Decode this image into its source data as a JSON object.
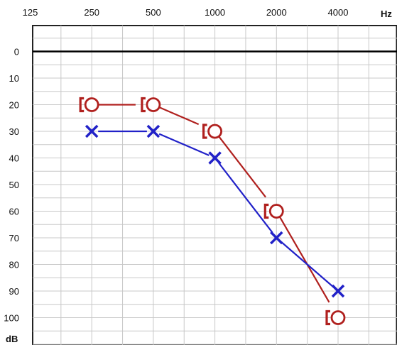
{
  "chart_data": {
    "type": "line",
    "title": "",
    "xlabel": "Hz",
    "ylabel": "dB",
    "x_ticks": [
      "125",
      "250",
      "500",
      "1000",
      "2000",
      "4000"
    ],
    "y_ticks": [
      "0",
      "10",
      "20",
      "30",
      "40",
      "50",
      "60",
      "70",
      "80",
      "90",
      "100"
    ],
    "x_scale": "log",
    "x_range": [
      125,
      6000
    ],
    "ylim": [
      -10,
      110
    ],
    "y_inverted": true,
    "grid": true,
    "legend": "none",
    "series": [
      {
        "marker": "circle-with-bracket",
        "color": "#b0201e",
        "x": [
          250,
          500,
          1000,
          2000,
          4000
        ],
        "y": [
          20,
          20,
          30,
          60,
          100
        ]
      },
      {
        "marker": "x",
        "color": "#2121c8",
        "x": [
          250,
          500,
          1000,
          2000,
          4000
        ],
        "y": [
          30,
          30,
          40,
          70,
          90
        ]
      }
    ]
  }
}
